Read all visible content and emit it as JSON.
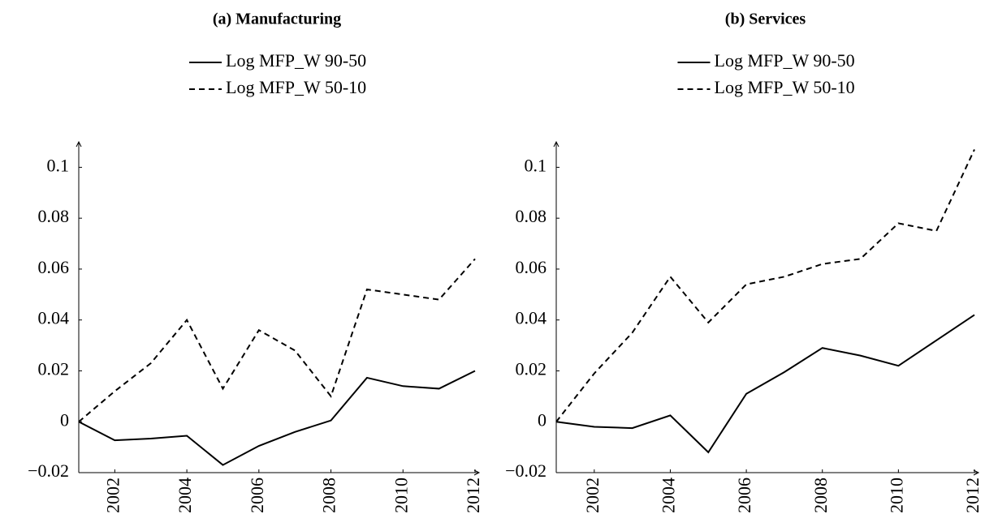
{
  "chart_data": [
    {
      "type": "line",
      "title": "(a) Manufacturing",
      "x": [
        2001,
        2002,
        2003,
        2004,
        2005,
        2006,
        2007,
        2008,
        2009,
        2010,
        2011,
        2012
      ],
      "series": [
        {
          "name": "Log MFP_W 90-50",
          "color": "#000000",
          "dash": "solid",
          "values": [
            0,
            -0.0073,
            -0.0066,
            -0.0055,
            -0.017,
            -0.0095,
            -0.004,
            0.0005,
            0.0173,
            0.014,
            0.013,
            0.02
          ]
        },
        {
          "name": "Log MFP_W 50-10",
          "color": "#000000",
          "dash": "dashed",
          "values": [
            0,
            0.012,
            0.023,
            0.04,
            0.013,
            0.036,
            0.028,
            0.01,
            0.052,
            0.05,
            0.048,
            0.064
          ]
        }
      ],
      "xlim": [
        2001,
        2012
      ],
      "xticks": [
        2002,
        2004,
        2006,
        2008,
        2010,
        2012
      ],
      "ylim": [
        -0.02,
        0.11
      ],
      "yticks": [
        {
          "value": -0.02,
          "label": "−0.02"
        },
        0,
        0.02,
        0.04,
        0.06,
        0.08,
        0.1
      ]
    },
    {
      "type": "line",
      "title": "(b) Services",
      "x": [
        2001,
        2002,
        2003,
        2004,
        2005,
        2006,
        2007,
        2008,
        2009,
        2010,
        2011,
        2012
      ],
      "series": [
        {
          "name": "Log MFP_W 90-50",
          "color": "#000000",
          "dash": "solid",
          "values": [
            0,
            -0.002,
            -0.0025,
            0.0025,
            -0.012,
            0.011,
            0.0195,
            0.029,
            0.026,
            0.022,
            0.032,
            0.042
          ]
        },
        {
          "name": "Log MFP_W 50-10",
          "color": "#000000",
          "dash": "dashed",
          "values": [
            0,
            0.019,
            0.035,
            0.057,
            0.039,
            0.054,
            0.057,
            0.062,
            0.064,
            0.078,
            0.075,
            0.107
          ]
        }
      ],
      "xlim": [
        2001,
        2012
      ],
      "xticks": [
        2002,
        2004,
        2006,
        2008,
        2010,
        2012
      ],
      "ylim": [
        -0.02,
        0.11
      ],
      "yticks": [
        {
          "value": -0.02,
          "label": "−0.02"
        },
        0,
        0.02,
        0.04,
        0.06,
        0.08,
        0.1
      ]
    }
  ]
}
